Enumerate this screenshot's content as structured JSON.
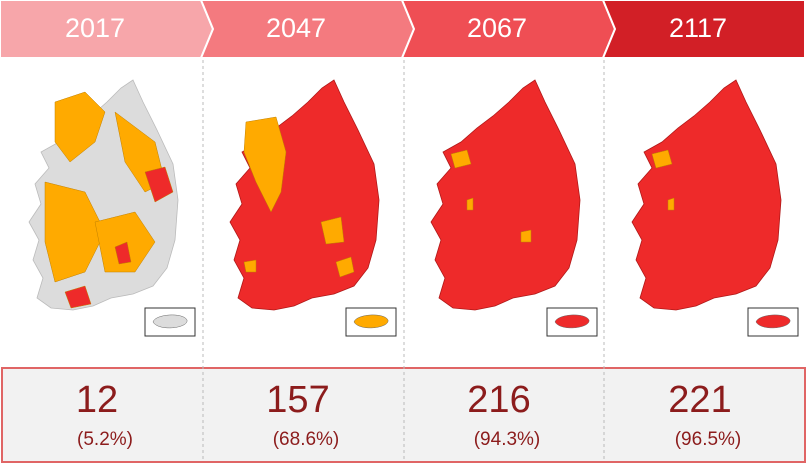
{
  "panels": [
    {
      "year": "2017",
      "count": 12,
      "percent": "(5.2%)"
    },
    {
      "year": "2047",
      "count": 157,
      "percent": "(68.6%)"
    },
    {
      "year": "2067",
      "count": 216,
      "percent": "(94.3%)"
    },
    {
      "year": "2117",
      "count": 221,
      "percent": "(96.5%)"
    }
  ]
}
